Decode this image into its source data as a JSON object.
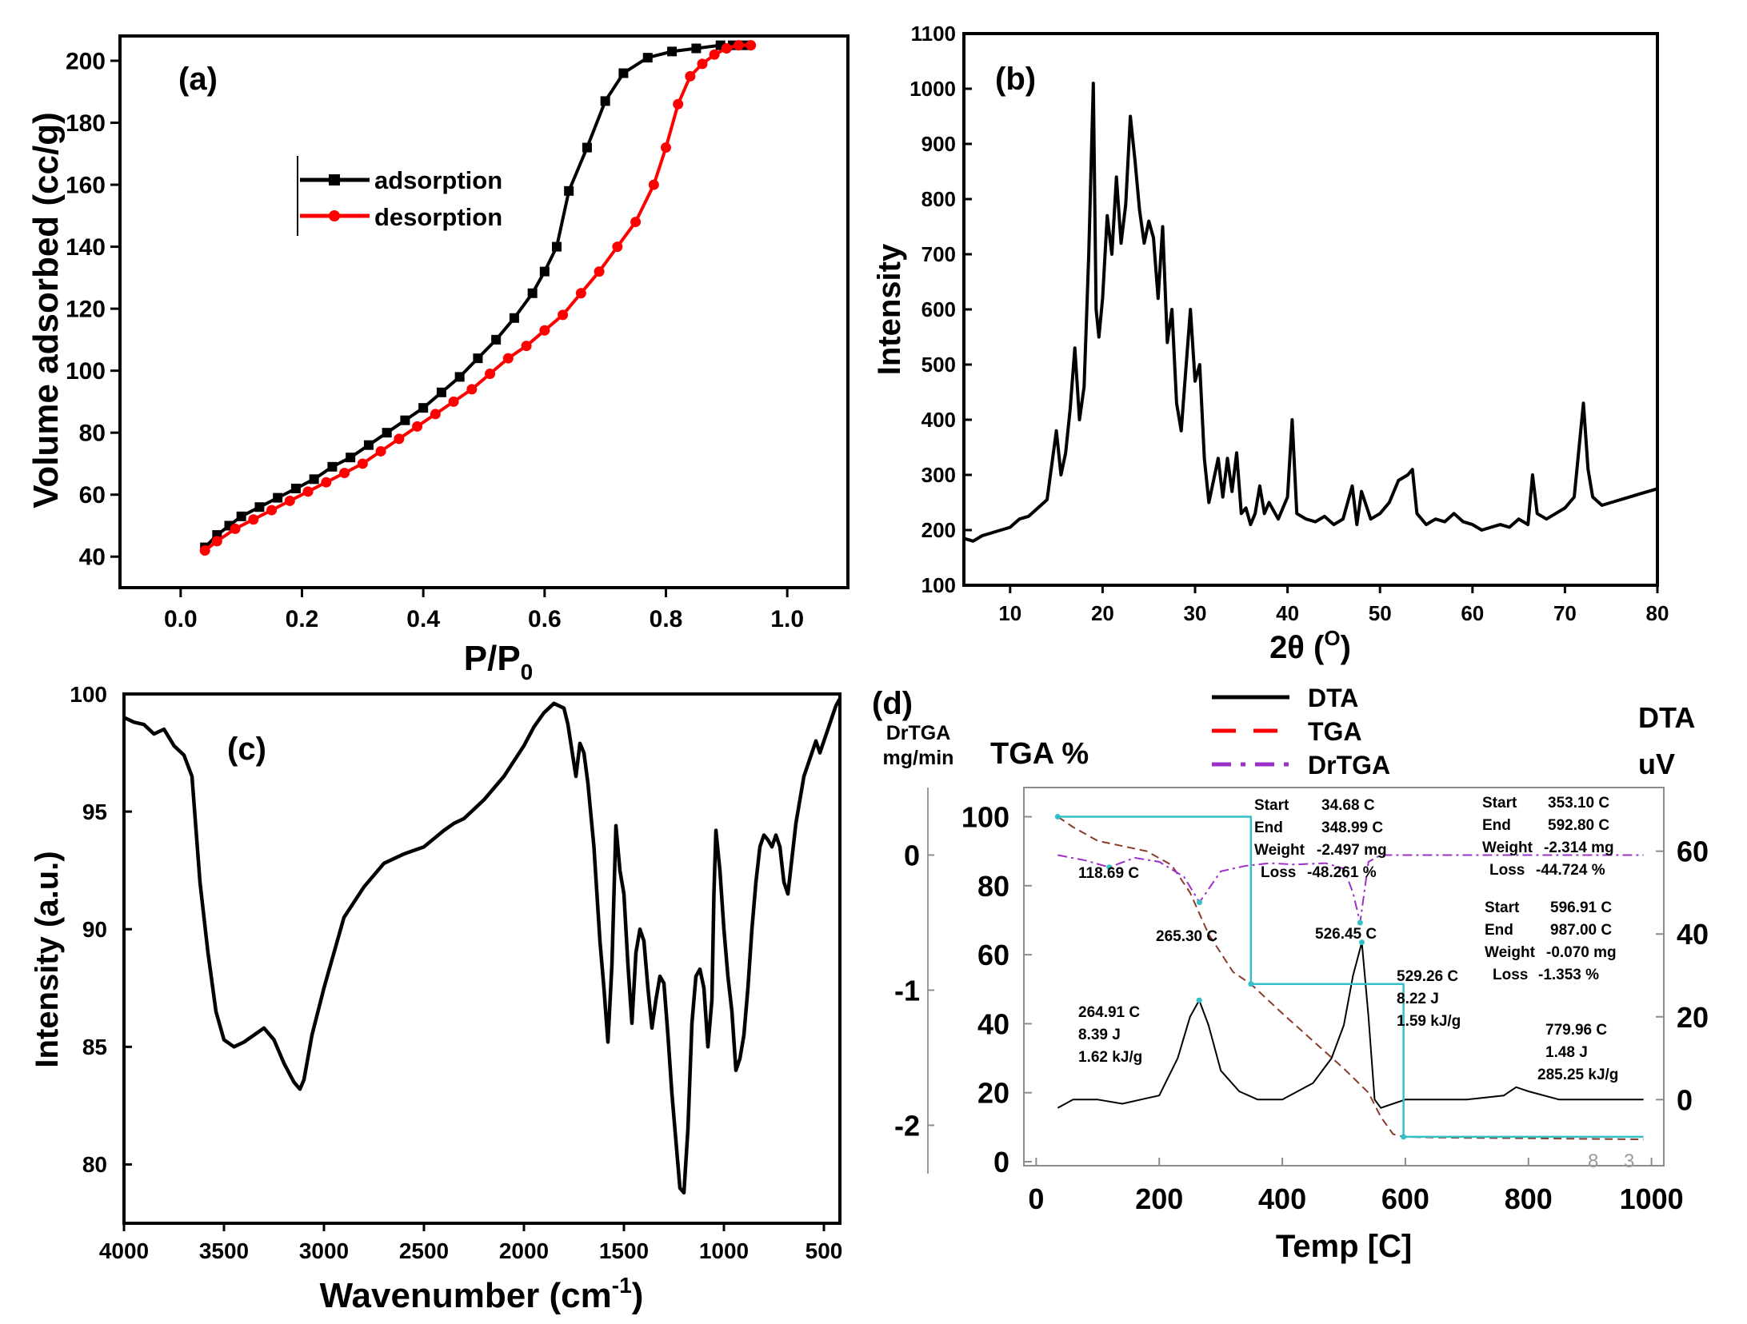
{
  "chart_data": [
    {
      "panel": "(a)",
      "type": "line",
      "xlabel": "P/P",
      "xlabel_sub": "0",
      "ylabel": "Volume adsorbed (cc/g)",
      "xlim": [
        -0.1,
        1.1
      ],
      "ylim": [
        30,
        208
      ],
      "xticks": [
        "0.0",
        "0.2",
        "0.4",
        "0.6",
        "0.8",
        "1.0"
      ],
      "yticks": [
        "40",
        "60",
        "80",
        "100",
        "120",
        "140",
        "160",
        "180",
        "200"
      ],
      "legend": [
        "adsorption",
        "desorption"
      ],
      "legend_position": "upper-middle",
      "series": [
        {
          "name": "adsorption",
          "color": "#000000",
          "marker": "square",
          "x": [
            0.04,
            0.06,
            0.08,
            0.1,
            0.13,
            0.16,
            0.19,
            0.22,
            0.25,
            0.28,
            0.31,
            0.34,
            0.37,
            0.4,
            0.43,
            0.46,
            0.49,
            0.52,
            0.55,
            0.58,
            0.6,
            0.62,
            0.64,
            0.67,
            0.7,
            0.73,
            0.77,
            0.81,
            0.85,
            0.89,
            0.91,
            0.93
          ],
          "y": [
            43,
            47,
            50,
            53,
            56,
            59,
            62,
            65,
            69,
            72,
            76,
            80,
            84,
            88,
            93,
            98,
            104,
            110,
            117,
            125,
            132,
            140,
            158,
            172,
            187,
            196,
            201,
            203,
            204,
            205,
            205,
            205
          ]
        },
        {
          "name": "desorption",
          "color": "#ff0000",
          "marker": "circle",
          "x": [
            0.04,
            0.06,
            0.09,
            0.12,
            0.15,
            0.18,
            0.21,
            0.24,
            0.27,
            0.3,
            0.33,
            0.36,
            0.39,
            0.42,
            0.45,
            0.48,
            0.51,
            0.54,
            0.57,
            0.6,
            0.63,
            0.66,
            0.69,
            0.72,
            0.75,
            0.78,
            0.8,
            0.82,
            0.84,
            0.86,
            0.88,
            0.9,
            0.92,
            0.94
          ],
          "y": [
            42,
            45,
            49,
            52,
            55,
            58,
            61,
            64,
            67,
            70,
            74,
            78,
            82,
            86,
            90,
            94,
            99,
            104,
            108,
            113,
            118,
            125,
            132,
            140,
            148,
            160,
            172,
            186,
            195,
            199,
            202,
            204,
            205,
            205
          ]
        }
      ]
    },
    {
      "panel": "(b)",
      "type": "line",
      "xlabel": "2θ (",
      "xlabel_sup": "O",
      "xlabel_end": ")",
      "ylabel": "Intensity",
      "xlim": [
        5,
        80
      ],
      "ylim": [
        100,
        1100
      ],
      "xticks": [
        "10",
        "20",
        "30",
        "40",
        "50",
        "60",
        "70",
        "80"
      ],
      "yticks": [
        "100",
        "200",
        "300",
        "400",
        "500",
        "600",
        "700",
        "800",
        "900",
        "1000",
        "1100"
      ],
      "series": [
        {
          "name": "XRD",
          "color": "#000000",
          "x": [
            5,
            6,
            7,
            8,
            9,
            10,
            11,
            12,
            13,
            14,
            15,
            15.5,
            16,
            16.5,
            17,
            17.5,
            18,
            18.5,
            19,
            19.3,
            19.6,
            20,
            20.5,
            21,
            21.5,
            22,
            22.5,
            23,
            23.5,
            24,
            24.5,
            25,
            25.5,
            26,
            26.5,
            27,
            27.5,
            28,
            28.5,
            29,
            29.5,
            30,
            30.5,
            31,
            31.5,
            32,
            32.5,
            33,
            33.5,
            34,
            34.5,
            35,
            35.5,
            36,
            36.5,
            37,
            37.5,
            38,
            39,
            40,
            40.5,
            41,
            42,
            43,
            44,
            45,
            46,
            47,
            47.5,
            48,
            49,
            50,
            51,
            52,
            53,
            53.5,
            54,
            55,
            56,
            57,
            58,
            59,
            60,
            61,
            62,
            63,
            64,
            65,
            66,
            66.5,
            67,
            68,
            69,
            70,
            71,
            72,
            72.5,
            73,
            74,
            75,
            76,
            77,
            78,
            79,
            80
          ],
          "y": [
            185,
            180,
            190,
            195,
            200,
            205,
            220,
            225,
            240,
            255,
            380,
            300,
            340,
            420,
            530,
            400,
            460,
            700,
            1010,
            600,
            550,
            620,
            770,
            700,
            840,
            720,
            790,
            950,
            870,
            780,
            720,
            760,
            730,
            620,
            750,
            540,
            600,
            430,
            380,
            490,
            600,
            470,
            500,
            330,
            250,
            290,
            330,
            260,
            330,
            270,
            340,
            230,
            240,
            210,
            230,
            280,
            230,
            250,
            220,
            260,
            400,
            230,
            220,
            215,
            225,
            210,
            220,
            280,
            210,
            270,
            220,
            230,
            250,
            290,
            300,
            310,
            230,
            210,
            220,
            215,
            230,
            215,
            210,
            200,
            205,
            210,
            205,
            220,
            210,
            300,
            230,
            220,
            230,
            240,
            260,
            430,
            310,
            260,
            245,
            250,
            255,
            260,
            265,
            270,
            275
          ]
        }
      ]
    },
    {
      "panel": "(c)",
      "type": "line",
      "xlabel": "Wavenumber (cm",
      "xlabel_sup": "-1",
      "xlabel_end": ")",
      "ylabel": "Intensity (a.u.)",
      "xlim": [
        4000,
        420
      ],
      "ylim": [
        77.5,
        100
      ],
      "xticks": [
        "4000",
        "3500",
        "3000",
        "2500",
        "2000",
        "1500",
        "1000",
        "500"
      ],
      "yticks": [
        "80",
        "85",
        "90",
        "95",
        "100"
      ],
      "series": [
        {
          "name": "FTIR",
          "color": "#000000",
          "x": [
            4000,
            3950,
            3900,
            3850,
            3800,
            3750,
            3700,
            3660,
            3620,
            3580,
            3540,
            3500,
            3450,
            3400,
            3350,
            3300,
            3250,
            3200,
            3150,
            3120,
            3100,
            3060,
            3000,
            2900,
            2800,
            2700,
            2600,
            2500,
            2400,
            2350,
            2300,
            2200,
            2100,
            2000,
            1950,
            1900,
            1850,
            1800,
            1780,
            1760,
            1740,
            1720,
            1700,
            1680,
            1650,
            1620,
            1600,
            1580,
            1560,
            1540,
            1520,
            1500,
            1480,
            1460,
            1440,
            1420,
            1400,
            1380,
            1360,
            1340,
            1320,
            1300,
            1280,
            1260,
            1240,
            1220,
            1200,
            1180,
            1160,
            1140,
            1120,
            1100,
            1080,
            1060,
            1050,
            1040,
            1020,
            1000,
            980,
            960,
            940,
            920,
            900,
            880,
            860,
            840,
            820,
            800,
            780,
            760,
            740,
            720,
            700,
            680,
            660,
            640,
            620,
            600,
            580,
            560,
            540,
            520,
            500,
            480,
            460,
            440,
            420
          ],
          "y": [
            99,
            98.8,
            98.7,
            98.3,
            98.5,
            97.8,
            97.4,
            96.5,
            92,
            89,
            86.5,
            85.3,
            85,
            85.2,
            85.5,
            85.8,
            85.3,
            84.3,
            83.5,
            83.2,
            83.6,
            85.5,
            87.5,
            90.5,
            91.8,
            92.8,
            93.2,
            93.5,
            94.2,
            94.5,
            94.7,
            95.5,
            96.5,
            97.8,
            98.6,
            99.2,
            99.6,
            99.4,
            98.7,
            97.6,
            96.5,
            97.9,
            97.5,
            96.2,
            93.5,
            89.5,
            87.5,
            85.2,
            88.5,
            94.4,
            92.5,
            91.5,
            88.5,
            86,
            89,
            90,
            89.5,
            87.5,
            85.8,
            87,
            88,
            87.7,
            85.5,
            83,
            81,
            79,
            78.8,
            81.5,
            86,
            88,
            88.3,
            87.5,
            85,
            87,
            91.5,
            94.2,
            92.5,
            90,
            88,
            86.5,
            84,
            84.5,
            85.5,
            87.5,
            90,
            92,
            93.5,
            94,
            93.8,
            93.5,
            94,
            93.5,
            92,
            91.5,
            93,
            94.5,
            95.5,
            96.5,
            97,
            97.5,
            98,
            97.5,
            98,
            98.5,
            99,
            99.5,
            99.8
          ]
        }
      ]
    },
    {
      "panel": "(d)",
      "type": "line",
      "xlabel": "Temp [C]",
      "ylabel_left_outer": [
        "DrTGA",
        "mg/min"
      ],
      "ylabel_left_inner": "TGA %",
      "ylabel_right": [
        "DTA",
        "uV"
      ],
      "xlim": [
        -20,
        1020
      ],
      "ylim_tga": [
        0,
        108
      ],
      "ylim_drtga": [
        -2.4,
        0.5
      ],
      "ylim_dta": [
        -15,
        75
      ],
      "xticks": [
        "0",
        "200",
        "400",
        "600",
        "800",
        "1000"
      ],
      "yticks_tga": [
        "0",
        "20",
        "40",
        "60",
        "80",
        "100"
      ],
      "yticks_drtga": [
        "-2",
        "-1",
        "0"
      ],
      "yticks_dta": [
        "0",
        "20",
        "40",
        "60"
      ],
      "legend": [
        "DTA",
        "TGA",
        "DrTGA"
      ],
      "annotations": [
        [
          "Start",
          "34.68 C"
        ],
        [
          "End",
          "348.99 C"
        ],
        [
          "Weight",
          "-2.497 mg"
        ],
        [
          "Loss",
          "-48.261 %"
        ],
        [
          "Start",
          "353.10 C"
        ],
        [
          "End",
          "592.80 C"
        ],
        [
          "Weight",
          "-2.314 mg"
        ],
        [
          "Loss",
          "-44.724 %"
        ],
        [
          "Start",
          "596.91 C"
        ],
        [
          "End",
          "987.00 C"
        ],
        [
          "Weight",
          "-0.070 mg"
        ],
        [
          "Loss",
          "-1.353 %"
        ],
        "118.69 C",
        "265.30 C",
        "526.45 C",
        "264.91 C",
        "8.39 J",
        "1.62 kJ/g",
        "529.26 C",
        "8.22 J",
        "1.59 kJ/g",
        "779.96 C",
        "1.48 J",
        "285.25 kJ/g",
        "8",
        "3"
      ],
      "series": [
        {
          "name": "TGA",
          "color": "#8b3a2a",
          "dash": "dashed",
          "x": [
            35,
            60,
            100,
            140,
            180,
            220,
            250,
            280,
            320,
            349,
            400,
            450,
            500,
            540,
            560,
            580,
            597,
            650,
            700,
            800,
            900,
            987
          ],
          "y": [
            100,
            97,
            93,
            91.5,
            90,
            86,
            78,
            66,
            55,
            51.5,
            43,
            35,
            27,
            20,
            13,
            8,
            7.2,
            7,
            6.9,
            6.8,
            6.6,
            6.5
          ]
        },
        {
          "name": "DrTGA",
          "color": "#9b30c8",
          "dash": "dashdot",
          "x": [
            35,
            80,
            118.69,
            160,
            200,
            240,
            265.3,
            300,
            340,
            380,
            420,
            470,
            500,
            515,
            526.45,
            540,
            560,
            600,
            700,
            800,
            900,
            987
          ],
          "y": [
            0,
            -0.04,
            -0.09,
            -0.02,
            -0.05,
            -0.16,
            -0.35,
            -0.12,
            -0.08,
            -0.06,
            -0.07,
            -0.06,
            -0.1,
            -0.28,
            -0.5,
            -0.05,
            0,
            0,
            0,
            0,
            0,
            0
          ]
        },
        {
          "name": "DTA",
          "color": "#000000",
          "dash": "solid",
          "x": [
            35,
            60,
            100,
            140,
            170,
            200,
            230,
            250,
            264.91,
            280,
            300,
            330,
            360,
            400,
            450,
            480,
            500,
            515,
            529.26,
            540,
            550,
            560,
            580,
            600,
            650,
            700,
            760,
            779.96,
            800,
            850,
            900,
            987
          ],
          "y": [
            -2,
            0,
            0,
            -1,
            0,
            1,
            10,
            20,
            24,
            18,
            7,
            2,
            0,
            0,
            4,
            10,
            18,
            30,
            38,
            20,
            0,
            -2,
            -1,
            0,
            0,
            0,
            1,
            3,
            2,
            0,
            0,
            0
          ]
        },
        {
          "name": "Step (TGA analysis)",
          "color": "#35c0c8",
          "dash": "solid",
          "x": [
            35,
            349,
            349,
            353,
            597,
            597,
            987
          ],
          "y": [
            100,
            100,
            51.5,
            51.5,
            51.5,
            7.2,
            7.2
          ]
        }
      ]
    }
  ]
}
